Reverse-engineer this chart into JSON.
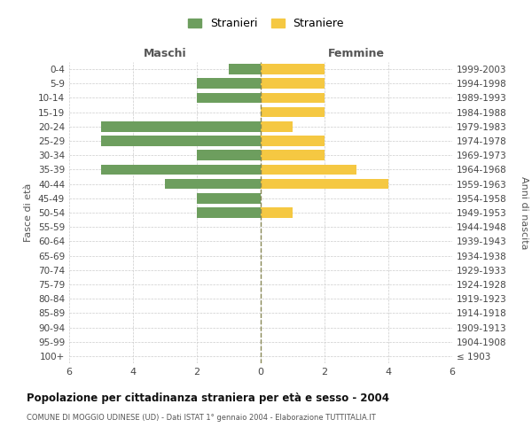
{
  "age_groups": [
    "100+",
    "95-99",
    "90-94",
    "85-89",
    "80-84",
    "75-79",
    "70-74",
    "65-69",
    "60-64",
    "55-59",
    "50-54",
    "45-49",
    "40-44",
    "35-39",
    "30-34",
    "25-29",
    "20-24",
    "15-19",
    "10-14",
    "5-9",
    "0-4"
  ],
  "birth_years": [
    "≤ 1903",
    "1904-1908",
    "1909-1913",
    "1914-1918",
    "1919-1923",
    "1924-1928",
    "1929-1933",
    "1934-1938",
    "1939-1943",
    "1944-1948",
    "1949-1953",
    "1954-1958",
    "1959-1963",
    "1964-1968",
    "1969-1973",
    "1974-1978",
    "1979-1983",
    "1984-1988",
    "1989-1993",
    "1994-1998",
    "1999-2003"
  ],
  "males": [
    0,
    0,
    0,
    0,
    0,
    0,
    0,
    0,
    0,
    0,
    2,
    2,
    3,
    5,
    2,
    5,
    5,
    0,
    2,
    2,
    1
  ],
  "females": [
    0,
    0,
    0,
    0,
    0,
    0,
    0,
    0,
    0,
    0,
    1,
    0,
    4,
    3,
    2,
    2,
    1,
    2,
    2,
    2,
    2
  ],
  "male_color": "#6d9e5e",
  "female_color": "#f5c842",
  "xlim": 6,
  "title": "Popolazione per cittadinanza straniera per età e sesso - 2004",
  "subtitle": "COMUNE DI MOGGIO UDINESE (UD) - Dati ISTAT 1° gennaio 2004 - Elaborazione TUTTITALIA.IT",
  "xlabel_left": "Maschi",
  "xlabel_right": "Femmine",
  "ylabel_left": "Fasce di età",
  "ylabel_right": "Anni di nascita",
  "legend_male": "Stranieri",
  "legend_female": "Straniere",
  "bg_color": "#ffffff",
  "grid_color": "#cccccc",
  "xtick_labels": [
    "6",
    "4",
    "2",
    "0",
    "2",
    "4",
    "6"
  ],
  "xtick_vals": [
    -6,
    -4,
    -2,
    0,
    2,
    4,
    6
  ]
}
